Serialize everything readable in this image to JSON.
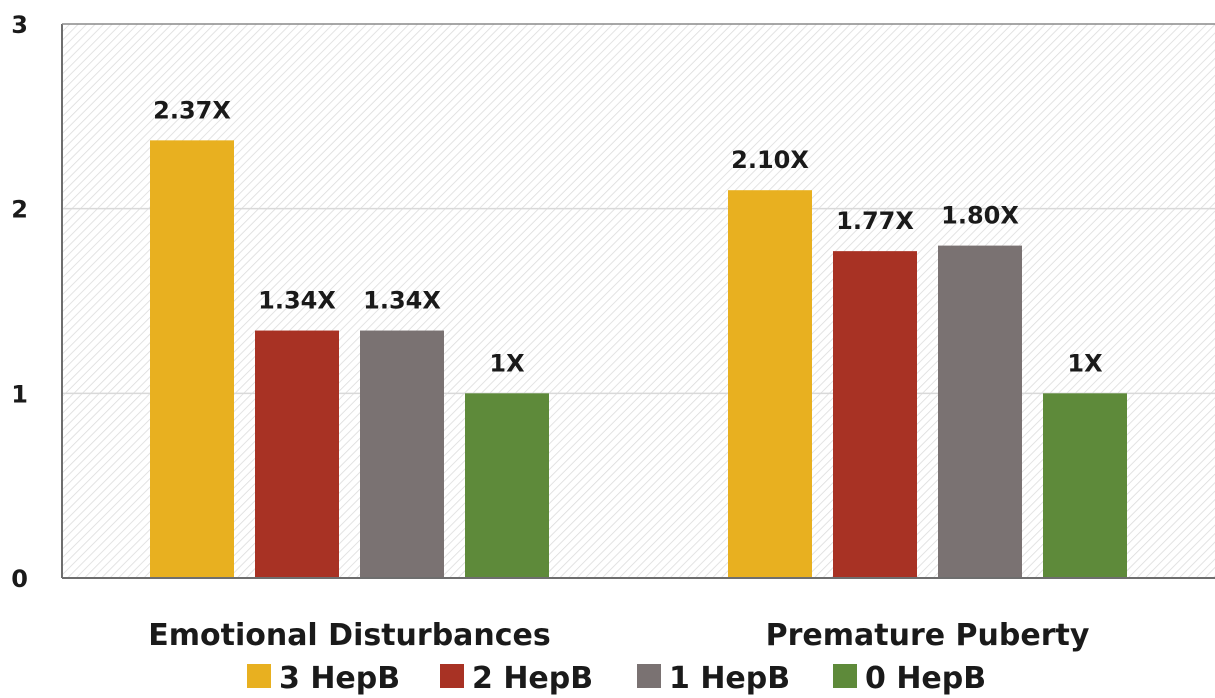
{
  "chart_data": {
    "type": "bar",
    "categories": [
      "Emotional Disturbances",
      "Premature Puberty"
    ],
    "series": [
      {
        "name": "3 HepB",
        "values": [
          2.37,
          2.1
        ],
        "labels": [
          "2.37X",
          "2.10X"
        ],
        "color": "#e8b020"
      },
      {
        "name": "2 HepB",
        "values": [
          1.34,
          1.77
        ],
        "labels": [
          "1.34X",
          "1.77X"
        ],
        "color": "#a83224"
      },
      {
        "name": "1 HepB",
        "values": [
          1.34,
          1.8
        ],
        "labels": [
          "1.34X",
          "1.80X"
        ],
        "color": "#7a7272"
      },
      {
        "name": "0 HepB",
        "values": [
          1,
          1
        ],
        "labels": [
          "1X",
          "1X"
        ],
        "color": "#5e8a3a"
      }
    ],
    "title": "",
    "xlabel": "",
    "ylabel": "",
    "ylim": [
      0,
      3
    ],
    "yticks": [
      "0",
      "1",
      "2",
      "3"
    ],
    "grid": true,
    "background": "hatched",
    "legend_position": "bottom"
  }
}
